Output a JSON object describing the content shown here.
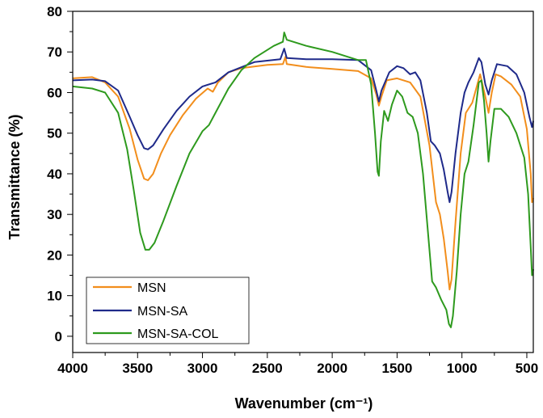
{
  "chart_data": {
    "type": "line",
    "title": "",
    "xlabel": "Wavenumber (cm⁻¹)",
    "ylabel": "Transmittance (%)",
    "xlim": [
      4000,
      450
    ],
    "ylim": [
      -4,
      80
    ],
    "x_ticks": [
      "4000",
      "3500",
      "3000",
      "2500",
      "2000",
      "1500",
      "1000",
      "500"
    ],
    "y_ticks": [
      "0",
      "10",
      "20",
      "30",
      "40",
      "50",
      "60",
      "70",
      "80"
    ],
    "legend_position": "bottom-left",
    "series": [
      {
        "name": "MSN",
        "color": "#f28e1c",
        "points": [
          [
            4000,
            63.5
          ],
          [
            3850,
            63.8
          ],
          [
            3750,
            62.5
          ],
          [
            3650,
            59
          ],
          [
            3560,
            51
          ],
          [
            3500,
            43.5
          ],
          [
            3450,
            38.8
          ],
          [
            3420,
            38.4
          ],
          [
            3380,
            40
          ],
          [
            3320,
            45
          ],
          [
            3250,
            49.5
          ],
          [
            3150,
            54.5
          ],
          [
            3050,
            58.5
          ],
          [
            2960,
            61
          ],
          [
            2920,
            60.2
          ],
          [
            2880,
            62.5
          ],
          [
            2800,
            65
          ],
          [
            2700,
            66
          ],
          [
            2500,
            66.8
          ],
          [
            2380,
            67
          ],
          [
            2360,
            68.8
          ],
          [
            2350,
            67
          ],
          [
            2200,
            66.3
          ],
          [
            2000,
            65.8
          ],
          [
            1800,
            65.3
          ],
          [
            1700,
            63.5
          ],
          [
            1660,
            59.5
          ],
          [
            1640,
            56.8
          ],
          [
            1620,
            59
          ],
          [
            1580,
            63
          ],
          [
            1500,
            63.5
          ],
          [
            1400,
            62.5
          ],
          [
            1320,
            59
          ],
          [
            1250,
            47
          ],
          [
            1200,
            33
          ],
          [
            1170,
            30
          ],
          [
            1140,
            24
          ],
          [
            1110,
            16
          ],
          [
            1095,
            11.5
          ],
          [
            1080,
            14
          ],
          [
            1050,
            28
          ],
          [
            1010,
            45
          ],
          [
            970,
            55
          ],
          [
            920,
            57.5
          ],
          [
            860,
            64.5
          ],
          [
            820,
            59
          ],
          [
            795,
            55
          ],
          [
            770,
            60
          ],
          [
            740,
            64.5
          ],
          [
            700,
            64
          ],
          [
            620,
            62
          ],
          [
            550,
            59
          ],
          [
            500,
            51
          ],
          [
            470,
            40
          ],
          [
            460,
            33
          ],
          [
            450,
            34
          ]
        ]
      },
      {
        "name": "MSN-SA",
        "color": "#1f2a8a",
        "points": [
          [
            4000,
            63
          ],
          [
            3850,
            63.2
          ],
          [
            3750,
            62.8
          ],
          [
            3650,
            60.5
          ],
          [
            3560,
            54
          ],
          [
            3500,
            49.5
          ],
          [
            3450,
            46.3
          ],
          [
            3420,
            46
          ],
          [
            3380,
            47
          ],
          [
            3300,
            51
          ],
          [
            3200,
            55.5
          ],
          [
            3100,
            59
          ],
          [
            3000,
            61.5
          ],
          [
            2900,
            62.5
          ],
          [
            2800,
            65
          ],
          [
            2600,
            67.5
          ],
          [
            2400,
            68.2
          ],
          [
            2370,
            70.8
          ],
          [
            2350,
            68.5
          ],
          [
            2200,
            68.2
          ],
          [
            2000,
            68.2
          ],
          [
            1800,
            68
          ],
          [
            1700,
            65.5
          ],
          [
            1660,
            60.5
          ],
          [
            1640,
            57.8
          ],
          [
            1620,
            60.5
          ],
          [
            1560,
            65
          ],
          [
            1500,
            66.5
          ],
          [
            1450,
            66
          ],
          [
            1400,
            64.5
          ],
          [
            1360,
            65
          ],
          [
            1320,
            63
          ],
          [
            1270,
            55
          ],
          [
            1240,
            48
          ],
          [
            1210,
            47
          ],
          [
            1170,
            45
          ],
          [
            1140,
            41
          ],
          [
            1110,
            35.5
          ],
          [
            1095,
            33
          ],
          [
            1080,
            35.5
          ],
          [
            1050,
            45
          ],
          [
            1010,
            55
          ],
          [
            980,
            60
          ],
          [
            950,
            62.5
          ],
          [
            910,
            65
          ],
          [
            870,
            68.5
          ],
          [
            850,
            67.5
          ],
          [
            820,
            62
          ],
          [
            795,
            59.5
          ],
          [
            770,
            63
          ],
          [
            730,
            67
          ],
          [
            650,
            66.5
          ],
          [
            580,
            64.5
          ],
          [
            520,
            60
          ],
          [
            480,
            54
          ],
          [
            460,
            51.5
          ],
          [
            450,
            53
          ]
        ]
      },
      {
        "name": "MSN-SA-COL",
        "color": "#2e9a1e",
        "points": [
          [
            4000,
            61.5
          ],
          [
            3850,
            61
          ],
          [
            3750,
            60
          ],
          [
            3650,
            55
          ],
          [
            3580,
            46
          ],
          [
            3530,
            36
          ],
          [
            3480,
            25.5
          ],
          [
            3440,
            21.3
          ],
          [
            3410,
            21.3
          ],
          [
            3370,
            23
          ],
          [
            3300,
            28.5
          ],
          [
            3200,
            37
          ],
          [
            3100,
            45
          ],
          [
            3000,
            50.5
          ],
          [
            2950,
            52
          ],
          [
            2900,
            55
          ],
          [
            2800,
            61
          ],
          [
            2700,
            65.5
          ],
          [
            2600,
            68.5
          ],
          [
            2450,
            71.5
          ],
          [
            2380,
            72.5
          ],
          [
            2370,
            74.8
          ],
          [
            2350,
            73
          ],
          [
            2200,
            71.5
          ],
          [
            2000,
            70
          ],
          [
            1800,
            68
          ],
          [
            1740,
            68
          ],
          [
            1700,
            62
          ],
          [
            1670,
            50
          ],
          [
            1650,
            40.5
          ],
          [
            1640,
            39.5
          ],
          [
            1625,
            48
          ],
          [
            1600,
            55.5
          ],
          [
            1570,
            53
          ],
          [
            1540,
            57
          ],
          [
            1500,
            60.5
          ],
          [
            1460,
            59
          ],
          [
            1420,
            55
          ],
          [
            1380,
            54
          ],
          [
            1340,
            50
          ],
          [
            1300,
            40
          ],
          [
            1260,
            25
          ],
          [
            1230,
            13.5
          ],
          [
            1200,
            12
          ],
          [
            1160,
            9
          ],
          [
            1120,
            6.5
          ],
          [
            1100,
            3
          ],
          [
            1085,
            2.2
          ],
          [
            1070,
            5
          ],
          [
            1040,
            16
          ],
          [
            1010,
            30
          ],
          [
            980,
            40
          ],
          [
            950,
            43
          ],
          [
            910,
            52
          ],
          [
            870,
            62.5
          ],
          [
            850,
            63
          ],
          [
            830,
            58
          ],
          [
            810,
            50
          ],
          [
            795,
            43
          ],
          [
            780,
            48
          ],
          [
            750,
            56
          ],
          [
            700,
            56
          ],
          [
            640,
            54
          ],
          [
            580,
            50
          ],
          [
            520,
            44
          ],
          [
            490,
            35
          ],
          [
            470,
            22
          ],
          [
            460,
            15
          ],
          [
            450,
            16.5
          ]
        ]
      }
    ]
  }
}
